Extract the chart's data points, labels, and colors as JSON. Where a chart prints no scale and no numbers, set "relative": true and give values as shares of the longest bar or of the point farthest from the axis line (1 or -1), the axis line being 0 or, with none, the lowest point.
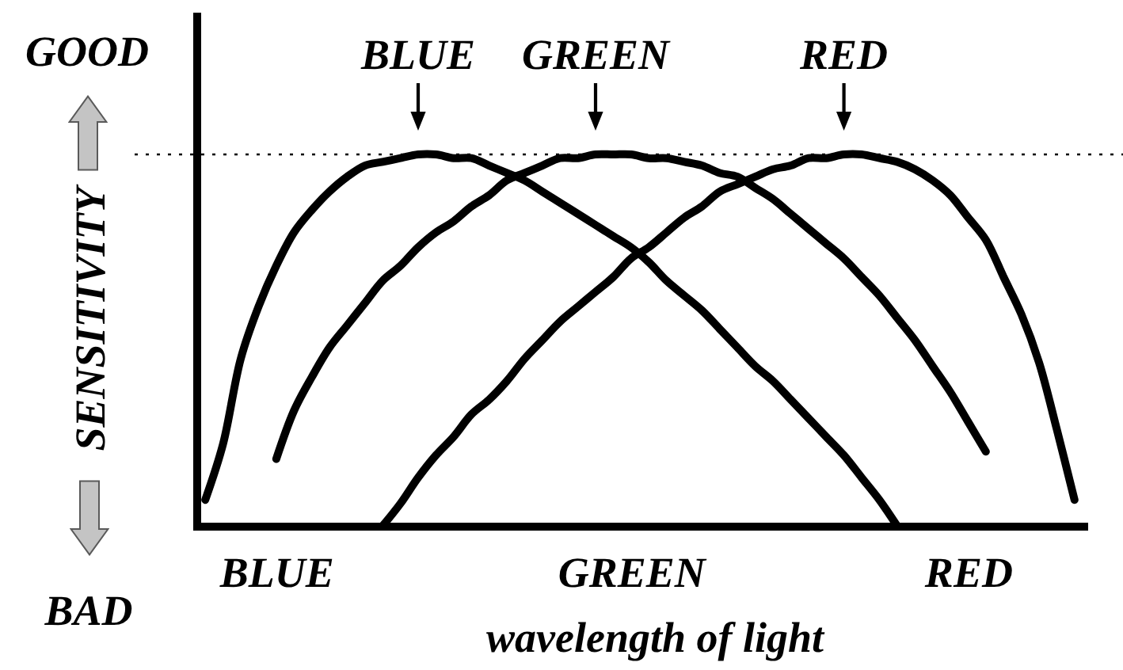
{
  "chart_data": {
    "type": "line",
    "xlabel": "wavelength of light",
    "ylabel": "SENSITIVITY",
    "annotations": [
      "GOOD",
      "BAD"
    ],
    "relative": true,
    "categories": [
      null,
      null,
      null,
      null,
      "BLUE",
      null,
      null,
      null,
      null,
      null,
      null,
      null,
      null,
      null,
      null,
      null,
      null,
      null,
      null,
      null,
      null,
      null,
      null,
      null,
      "GREEN",
      null,
      null,
      null,
      null,
      null,
      null,
      null,
      null,
      null,
      null,
      null,
      null,
      null,
      null,
      null,
      null,
      null,
      null,
      "RED",
      null,
      null,
      null,
      null,
      null,
      null
    ],
    "series": [
      {
        "name": "BLUE",
        "color": "#000000",
        "values": [
          0.07,
          0.22,
          0.45,
          0.59,
          0.7,
          0.79,
          0.85,
          0.9,
          0.94,
          0.97,
          0.98,
          0.99,
          1,
          1,
          0.99,
          0.99,
          0.97,
          0.95,
          0.93,
          0.9,
          0.87,
          0.84,
          0.81,
          0.78,
          0.75,
          0.71,
          0.66,
          0.62,
          0.58,
          0.53,
          0.48,
          0.43,
          0.39,
          0.34,
          0.29,
          0.24,
          0.19,
          0.13,
          0.07,
          0,
          null,
          null,
          null,
          null,
          null,
          null,
          null,
          null,
          null,
          null
        ]
      },
      {
        "name": "GREEN",
        "color": "#000000",
        "values": [
          null,
          null,
          null,
          null,
          0.18,
          0.31,
          0.4,
          0.48,
          0.54,
          0.6,
          0.66,
          0.7,
          0.75,
          0.79,
          0.82,
          0.86,
          0.89,
          0.93,
          0.95,
          0.97,
          0.99,
          0.99,
          1,
          1,
          1,
          0.99,
          0.99,
          0.98,
          0.97,
          0.95,
          0.94,
          0.91,
          0.88,
          0.84,
          0.8,
          0.76,
          0.72,
          0.67,
          0.62,
          0.56,
          0.5,
          0.43,
          0.36,
          0.28,
          0.2,
          null,
          null,
          null,
          null,
          null
        ]
      },
      {
        "name": "RED",
        "color": "#000000",
        "values": [
          null,
          null,
          null,
          null,
          null,
          null,
          null,
          null,
          null,
          null,
          0,
          0.06,
          0.13,
          0.19,
          0.24,
          0.3,
          0.34,
          0.39,
          0.45,
          0.5,
          0.55,
          0.59,
          0.63,
          0.67,
          0.72,
          0.75,
          0.79,
          0.83,
          0.86,
          0.9,
          0.92,
          0.94,
          0.96,
          0.97,
          0.99,
          0.99,
          1,
          1,
          0.99,
          0.98,
          0.96,
          0.93,
          0.89,
          0.83,
          0.77,
          0.67,
          0.57,
          0.44,
          0.26,
          0.07
        ]
      }
    ],
    "ref_lines": [
      {
        "axis": "y",
        "value": 1,
        "color": "#000000",
        "line_style": "dotted"
      }
    ]
  }
}
